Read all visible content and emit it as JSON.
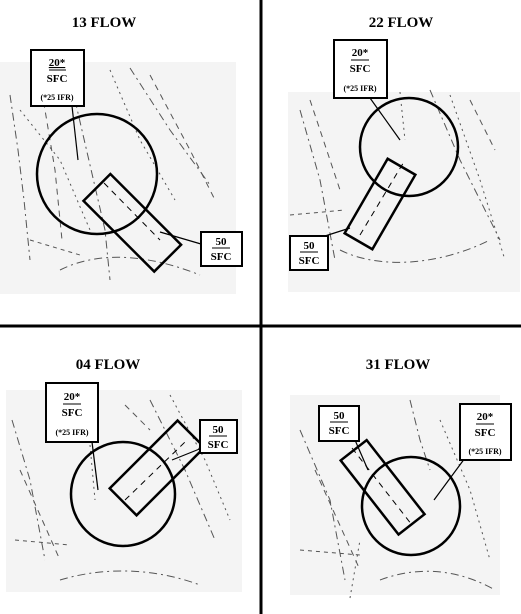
{
  "quadrants": [
    {
      "title": "13 FLOW",
      "label_a": {
        "top": "20*",
        "bottom": "SFC",
        "note": "(*25 IFR)"
      },
      "label_b": {
        "top": "50",
        "bottom": "SFC"
      }
    },
    {
      "title": "22 FLOW",
      "label_a": {
        "top": "20*",
        "bottom": "SFC",
        "note": "(*25  IFR)"
      },
      "label_b": {
        "top": "50",
        "bottom": "SFC"
      }
    },
    {
      "title": "04 FLOW",
      "label_a": {
        "top": "20*",
        "bottom": "SFC",
        "note": "(*25  IFR)"
      },
      "label_b": {
        "top": "50",
        "bottom": "SFC"
      }
    },
    {
      "title": "31 FLOW",
      "label_a": {
        "top": "20*",
        "bottom": "SFC",
        "note": "(*25  IFR)"
      },
      "label_b": {
        "top": "50",
        "bottom": "SFC"
      }
    }
  ],
  "colors": {
    "line": "#000000",
    "map_bg": "#f4f4f4",
    "map_line": "#555555"
  }
}
